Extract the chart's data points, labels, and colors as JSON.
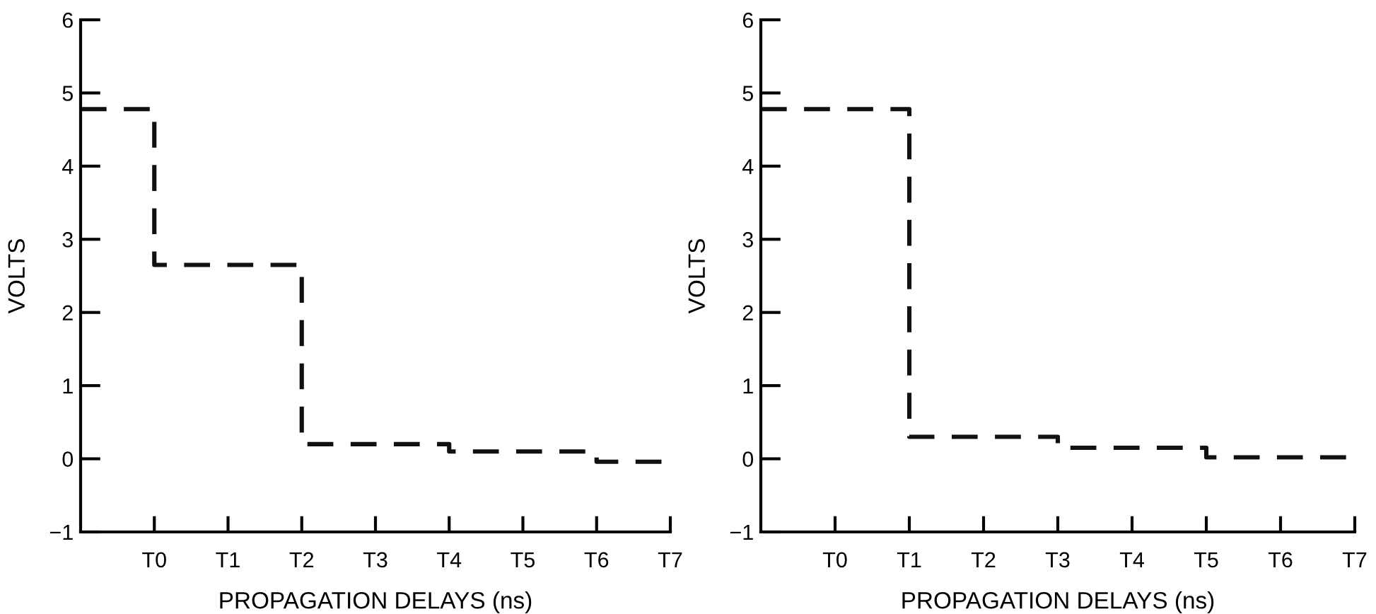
{
  "chart_data": [
    {
      "type": "step",
      "xlabel": "PROPAGATION DELAYS (ns)",
      "ylabel": "VOLTS",
      "ylim": [
        -1,
        6
      ],
      "categories": [
        null,
        "T0",
        "T1",
        "T2",
        "T3",
        "T4",
        "T5",
        "T6",
        "T7"
      ],
      "yticks": [
        {
          "value": -1,
          "label": "−1"
        },
        0,
        1,
        2,
        3,
        4,
        5,
        6
      ],
      "grid": false,
      "line_style": "dashed",
      "marker": "none",
      "series": [
        {
          "color": "#111111",
          "values": [
            4.78,
            2.65,
            2.65,
            0.2,
            0.2,
            0.1,
            0.1,
            -0.04,
            -0.04
          ]
        }
      ]
    },
    {
      "type": "step",
      "xlabel": "PROPAGATION DELAYS (ns)",
      "ylabel": "VOLTS",
      "ylim": [
        -1,
        6
      ],
      "categories": [
        null,
        "T0",
        "T1",
        "T2",
        "T3",
        "T4",
        "T5",
        "T6",
        "T7"
      ],
      "yticks": [
        {
          "value": -1,
          "label": "−1"
        },
        0,
        1,
        2,
        3,
        4,
        5,
        6
      ],
      "grid": false,
      "line_style": "dashed",
      "marker": "none",
      "series": [
        {
          "color": "#111111",
          "values": [
            4.78,
            4.78,
            0.3,
            0.3,
            0.15,
            0.15,
            0.02,
            0.02,
            0.02
          ]
        }
      ]
    }
  ]
}
